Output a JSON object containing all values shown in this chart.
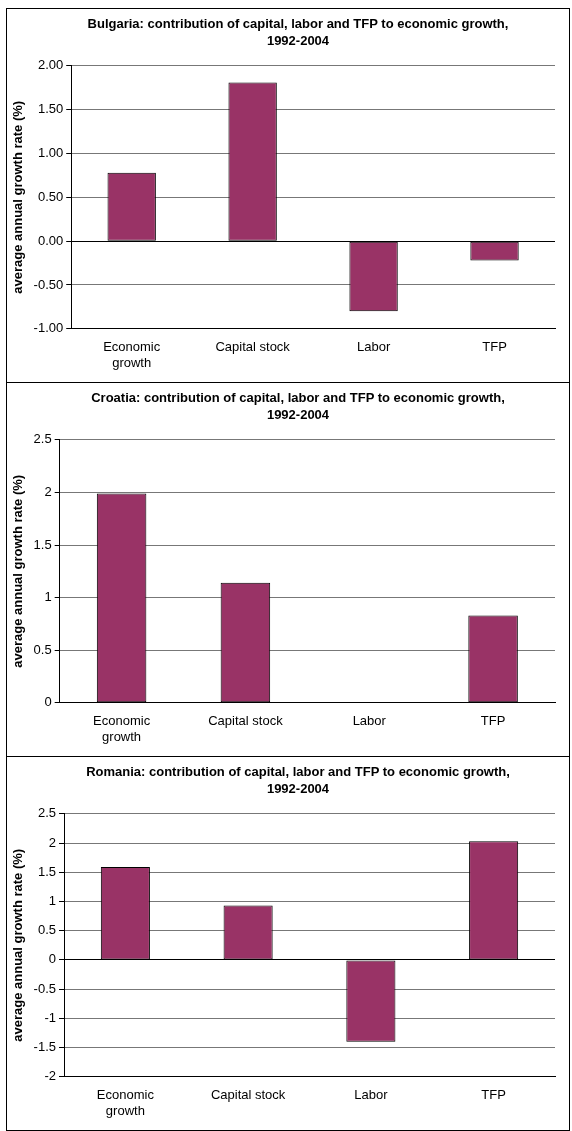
{
  "chart_data": [
    {
      "type": "bar",
      "title": "Bulgaria: contribution of capital, labor and TFP to economic growth, 1992-2004",
      "ylabel": "average annual growth rate (%)",
      "categories": [
        "Economic growth",
        "Capital stock",
        "Labor",
        "TFP"
      ],
      "values": [
        0.78,
        1.81,
        -0.8,
        -0.22
      ],
      "color": "#993366",
      "ylim": [
        -1,
        2
      ],
      "yticks": [
        {
          "value": -1,
          "label": "-1.00"
        },
        {
          "value": -0.5,
          "label": "-0.50"
        },
        {
          "value": 0,
          "label": "0.00"
        },
        {
          "value": 0.5,
          "label": "0.50"
        },
        {
          "value": 1,
          "label": "1.00"
        },
        {
          "value": 1.5,
          "label": "1.50"
        },
        {
          "value": 2,
          "label": "2.00"
        }
      ],
      "grid": "y"
    },
    {
      "type": "bar",
      "title": "Croatia: contribution of capital, labor and TFP to economic growth, 1992-2004",
      "ylabel": "average annual growth rate (%)",
      "categories": [
        "Economic growth",
        "Capital stock",
        "Labor",
        "TFP"
      ],
      "values": [
        1.99,
        1.14,
        0,
        0.83
      ],
      "color": "#993366",
      "ylim": [
        0,
        2.5
      ],
      "yticks": [
        0,
        0.5,
        1,
        1.5,
        2,
        2.5
      ],
      "grid": "y"
    },
    {
      "type": "bar",
      "title": "Romania: contribution of capital, labor and TFP to economic growth, 1992-2004",
      "ylabel": "average annual growth rate (%)",
      "categories": [
        "Economic growth",
        "Capital stock",
        "Labor",
        "TFP"
      ],
      "values": [
        1.59,
        0.93,
        -1.4,
        2.03
      ],
      "color": "#993366",
      "ylim": [
        -2,
        2.5
      ],
      "yticks": [
        -2,
        -1.5,
        -1,
        -0.5,
        0,
        0.5,
        1,
        1.5,
        2,
        2.5
      ],
      "grid": "y"
    }
  ]
}
